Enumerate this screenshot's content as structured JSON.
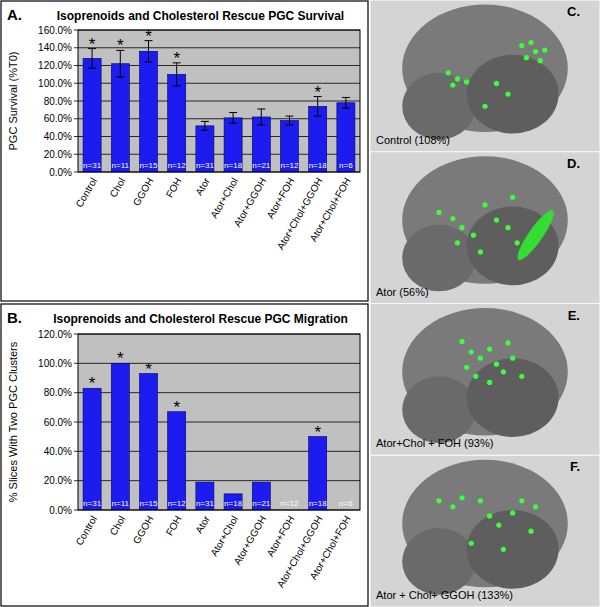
{
  "chart_data": [
    {
      "type": "bar",
      "panel_label": "A.",
      "title": "Isoprenoids and Cholesterol Rescue PGC Survival",
      "y_label": "PGC Survival (%T0)",
      "categories": [
        "Control",
        "Chol",
        "GGOH",
        "FOH",
        "Ator",
        "Ator+Chol",
        "Ator+GGOH",
        "Ator+FOH",
        "Ator+Chol+GGOH",
        "Ator+Chol+FOH"
      ],
      "values": [
        128,
        122,
        136,
        110,
        52,
        61,
        62,
        58,
        74,
        78
      ],
      "errors": [
        11,
        15,
        12,
        13,
        5,
        6,
        9,
        5,
        11,
        6
      ],
      "n_labels": [
        "n=31",
        "n=11",
        "n=15",
        "n=12",
        "n=31",
        "n=18",
        "n=21",
        "n=12",
        "n=18",
        "n=6"
      ],
      "annotation_labels": [
        "*",
        "*",
        "*",
        "*",
        null,
        null,
        null,
        null,
        "*",
        null
      ],
      "color": "#1c1cf0",
      "ylim": [
        0,
        160
      ],
      "yticks": [
        {
          "value": 0,
          "label": "0.0%"
        },
        {
          "value": 20,
          "label": "20.0%"
        },
        {
          "value": 40,
          "label": "40.0%"
        },
        {
          "value": 60,
          "label": "60.0%"
        },
        {
          "value": 80,
          "label": "80.0%"
        },
        {
          "value": 100,
          "label": "100.0%"
        },
        {
          "value": 120,
          "label": "120.0%"
        },
        {
          "value": 140,
          "label": "140.0%"
        },
        {
          "value": 160,
          "label": "160.0%"
        }
      ],
      "grid": true
    },
    {
      "type": "bar",
      "panel_label": "B.",
      "title": "Isoprenoids and Cholesterol Rescue PGC Migration",
      "y_label": "% Slices With Two PGC Clusters",
      "categories": [
        "Control",
        "Chol",
        "GGOH",
        "FOH",
        "Ator",
        "Ator+Chol",
        "Ator+GGOH",
        "Ator+FOH",
        "Ator+Chol+GGOH",
        "Ator+Chol+FOH"
      ],
      "values": [
        83,
        100,
        93,
        67,
        19,
        11,
        19,
        0,
        50,
        0
      ],
      "n_labels": [
        "n=31",
        "n=11",
        "n=15",
        "n=12",
        "n=31",
        "n=18",
        "n=21",
        "n=12",
        "n=18",
        "n=6"
      ],
      "annotation_labels": [
        "*",
        "*",
        "*",
        "*",
        null,
        null,
        null,
        null,
        "*",
        null
      ],
      "color": "#1c1cf0",
      "ylim": [
        0,
        120
      ],
      "yticks": [
        {
          "value": 0,
          "label": "0.0%"
        },
        {
          "value": 20,
          "label": "20.0%"
        },
        {
          "value": 40,
          "label": "40.0%"
        },
        {
          "value": 60,
          "label": "60.0%"
        },
        {
          "value": 80,
          "label": "80.0%"
        },
        {
          "value": 100,
          "label": "100.0%"
        },
        {
          "value": 120,
          "label": "120.0%"
        }
      ],
      "grid": true
    }
  ],
  "panels": [
    {
      "label": "C.",
      "caption": "Control (108%)"
    },
    {
      "label": "D.",
      "caption": "Ator (56%)"
    },
    {
      "label": "E.",
      "caption": "Ator+Chol + FOH (93%)"
    },
    {
      "label": "F.",
      "caption": "Ator + Chol+ GGOH (133%)"
    }
  ]
}
